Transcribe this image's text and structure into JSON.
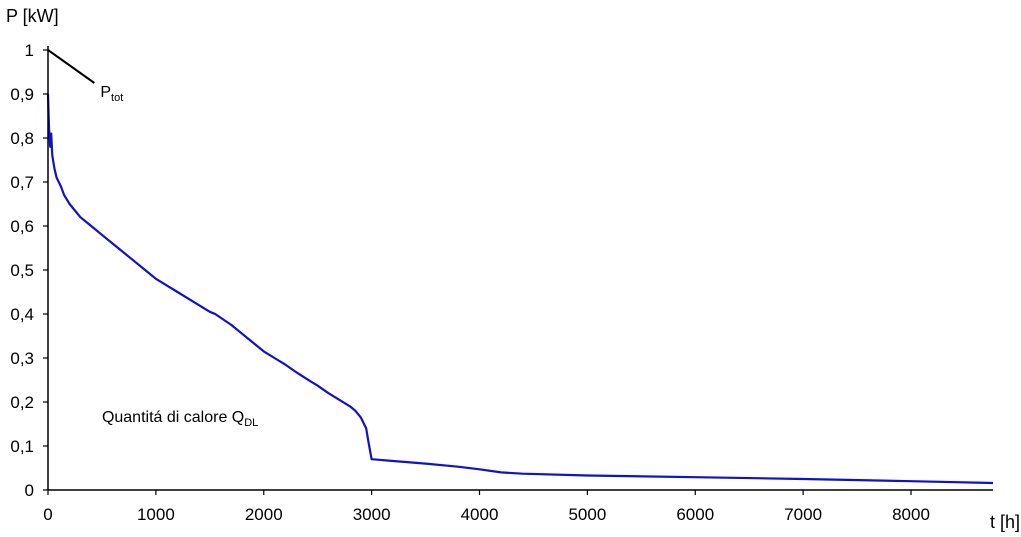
{
  "chart_data": {
    "type": "line",
    "ylabel": "P [kW]",
    "xlabel": "t [h]",
    "xlim": [
      0,
      8760
    ],
    "ylim": [
      0,
      1
    ],
    "x_ticks": [
      0,
      1000,
      2000,
      3000,
      4000,
      5000,
      6000,
      7000,
      8000
    ],
    "x_tick_labels": [
      "0",
      "1000",
      "2000",
      "3000",
      "4000",
      "5000",
      "6000",
      "7000",
      "8000"
    ],
    "y_ticks": [
      0,
      0.1,
      0.2,
      0.3,
      0.4,
      0.5,
      0.6,
      0.7,
      0.8,
      0.9,
      1
    ],
    "y_tick_labels": [
      "0",
      "0,1",
      "0,2",
      "0,3",
      "0,4",
      "0,5",
      "0,6",
      "0,7",
      "0,8",
      "0,9",
      "1"
    ],
    "grid": false,
    "colors": {
      "curve": "#1010d0",
      "axis": "#000000"
    },
    "series": [
      {
        "x": [
          0,
          5,
          10,
          20,
          30,
          40,
          60,
          80,
          120,
          150,
          200,
          300,
          400,
          500,
          600,
          700,
          800,
          900,
          1000,
          1100,
          1200,
          1300,
          1400,
          1500,
          1550,
          1700,
          1800,
          1900,
          2000,
          2100,
          2200,
          2300,
          2400,
          2500,
          2600,
          2700,
          2800,
          2850,
          2900,
          2950,
          2970,
          3000,
          3200,
          3500,
          3800,
          4000,
          4200,
          4400,
          5000,
          6000,
          7000,
          8000,
          8760
        ],
        "y": [
          0.9,
          0.86,
          0.82,
          0.78,
          0.81,
          0.76,
          0.73,
          0.71,
          0.69,
          0.67,
          0.65,
          0.62,
          0.6,
          0.58,
          0.56,
          0.54,
          0.52,
          0.5,
          0.48,
          0.465,
          0.45,
          0.435,
          0.42,
          0.405,
          0.4,
          0.375,
          0.355,
          0.335,
          0.315,
          0.3,
          0.285,
          0.268,
          0.252,
          0.237,
          0.22,
          0.205,
          0.19,
          0.18,
          0.165,
          0.14,
          0.11,
          0.07,
          0.066,
          0.06,
          0.053,
          0.047,
          0.04,
          0.037,
          0.033,
          0.029,
          0.025,
          0.02,
          0.016
        ]
      }
    ],
    "annotations": {
      "p_main": "P",
      "p_sub": "tot",
      "p_line": {
        "x": [
          0,
          430
        ],
        "y": [
          1.0,
          0.925
        ]
      },
      "q_main": "Quantitá di calore Q",
      "q_sub": "DL",
      "q_pos": {
        "x": 500,
        "y": 0.155
      }
    }
  }
}
